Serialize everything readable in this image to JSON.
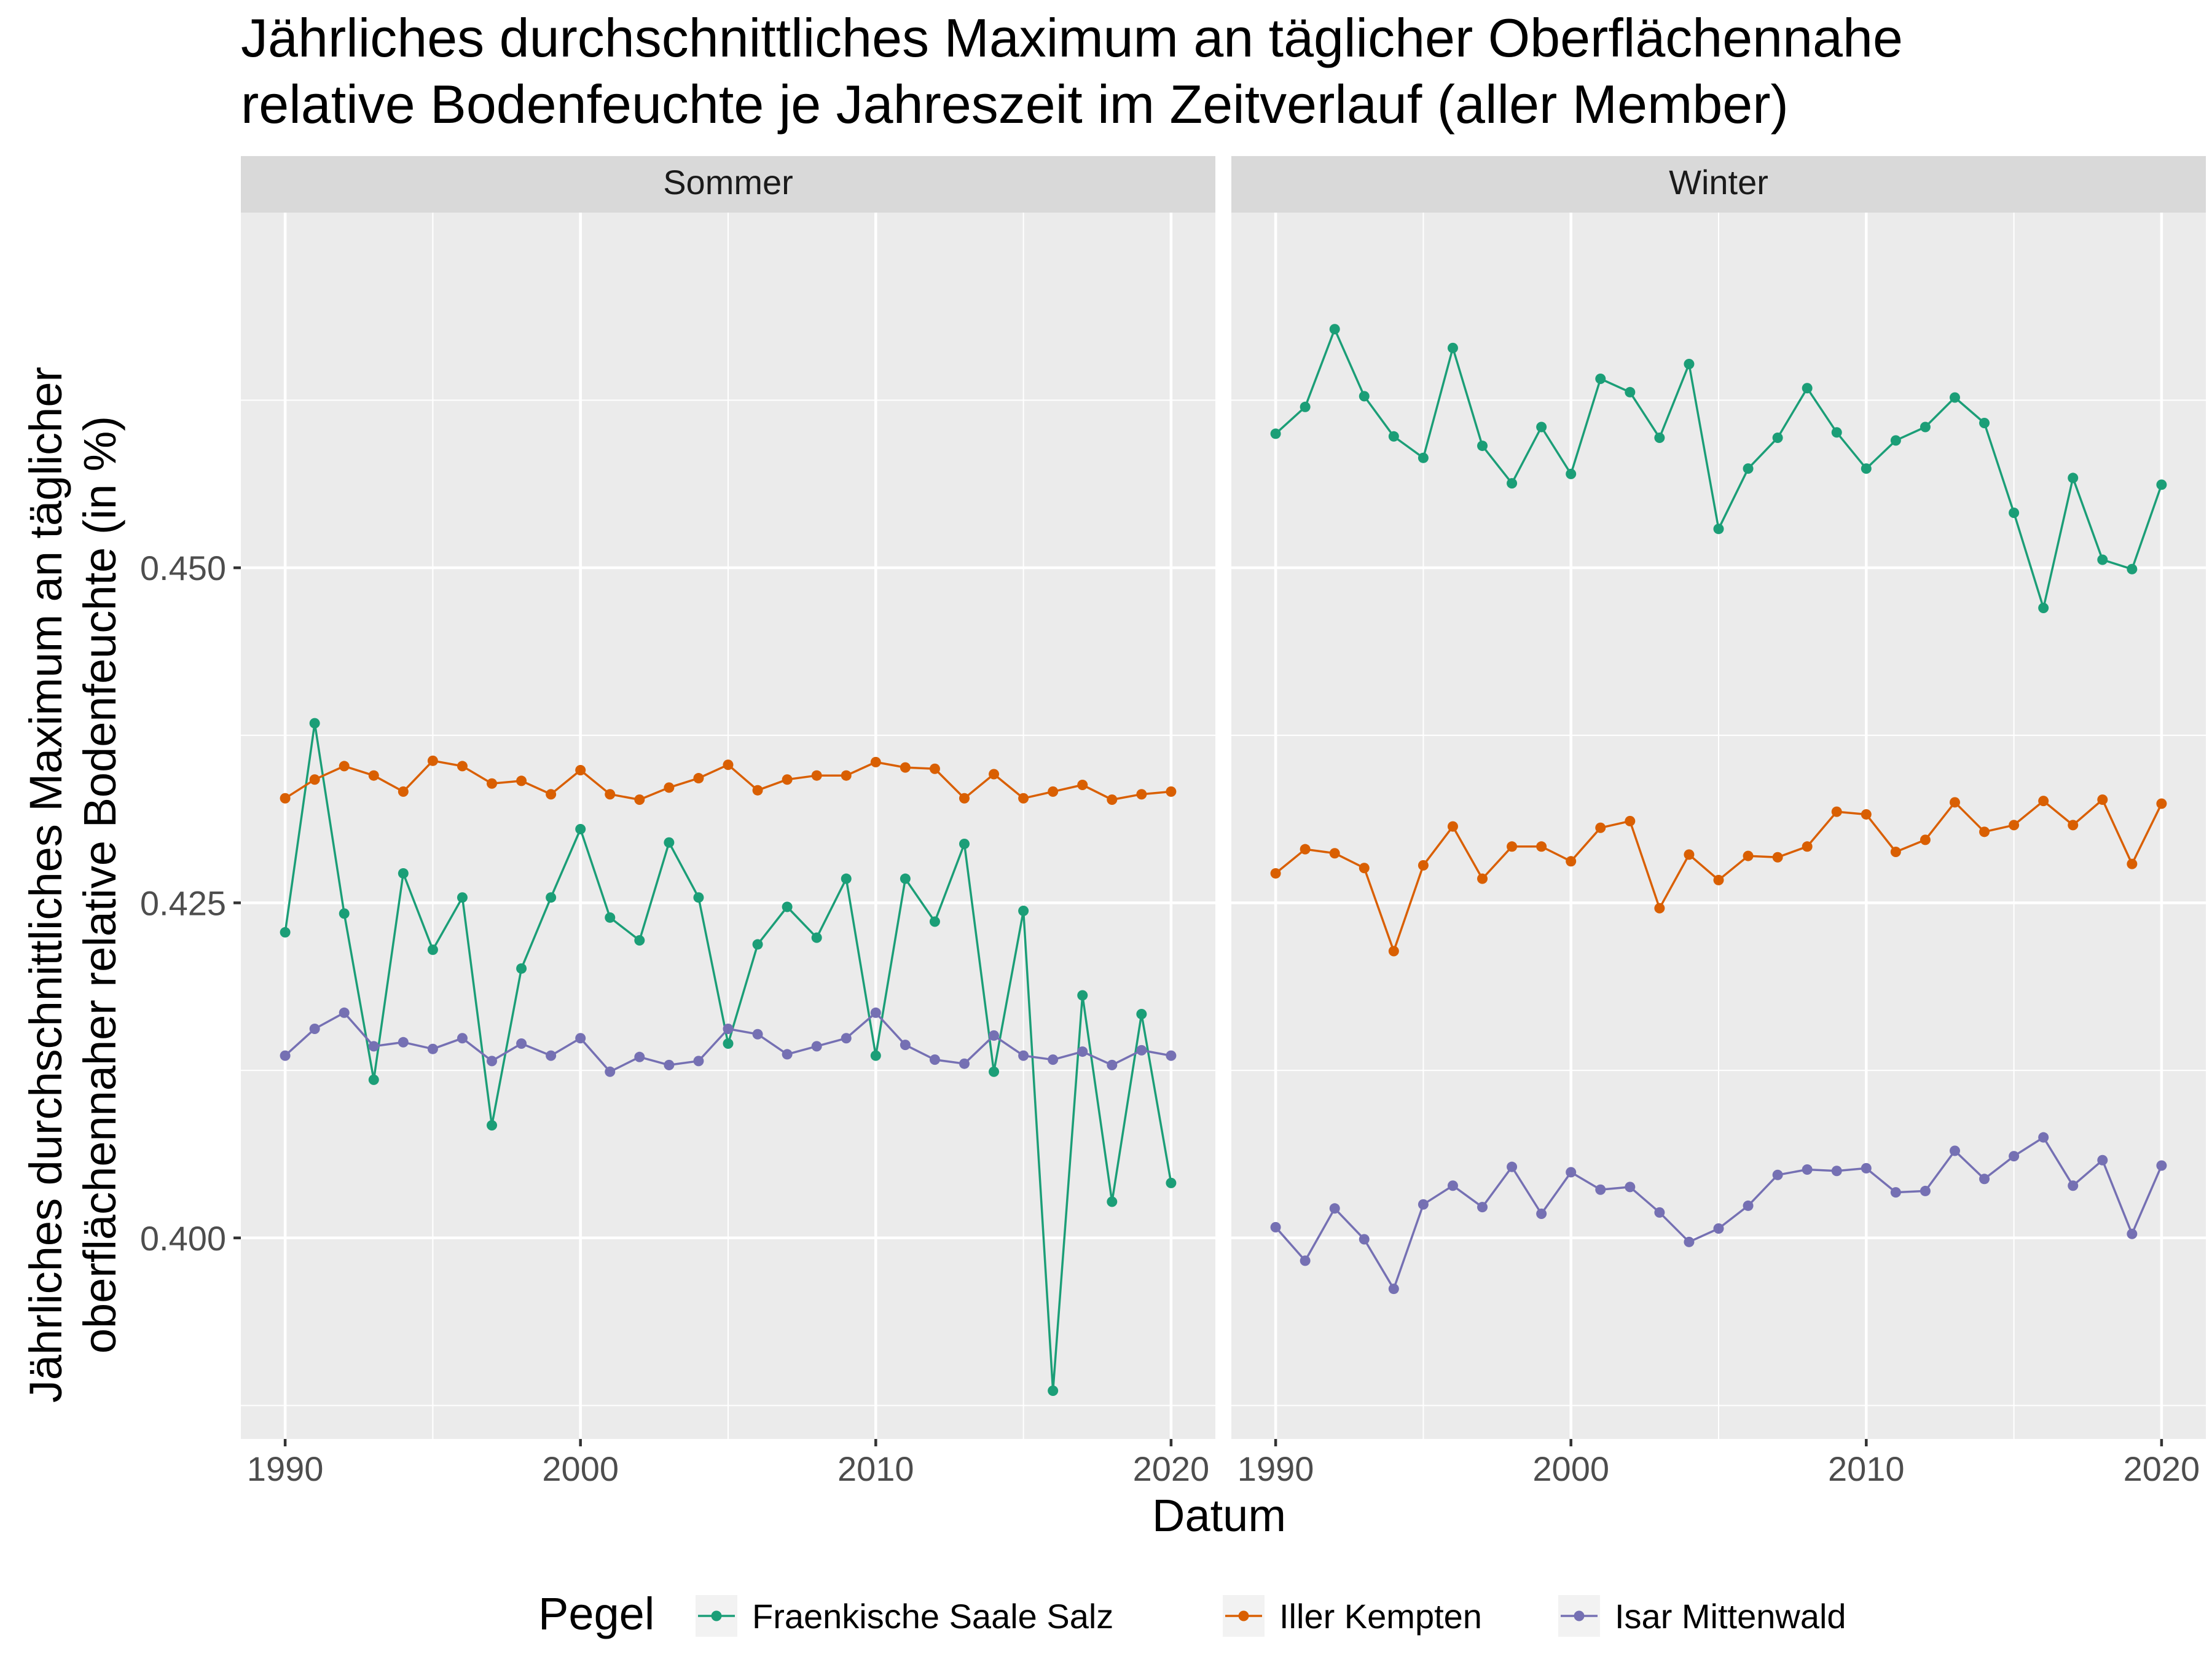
{
  "chart_data": {
    "type": "line",
    "title_lines": [
      "Jährliches durchschnittliches Maximum an täglicher Oberflächennahe",
      "relative Bodenfeuchte je Jahreszeit im Zeitverlauf (aller Member)"
    ],
    "xlabel": "Datum",
    "ylabel_lines": [
      "Jährliches durchschnittliches Maximum an täglicher",
      "oberflächennaher relative Bodenfeuchte (in %)"
    ],
    "legend_title": "Pegel",
    "legend_position": "bottom",
    "grid": true,
    "xlim": [
      1988.5,
      2021.5
    ],
    "ylim": [
      0.385,
      0.4765
    ],
    "x_ticks": [
      1990,
      2000,
      2010,
      2020
    ],
    "x_tick_labels": [
      "1990",
      "2000",
      "2010",
      "2020"
    ],
    "y_ticks": [
      0.4,
      0.425,
      0.45
    ],
    "y_tick_labels": [
      "0.400",
      "0.425",
      "0.450"
    ],
    "x": [
      1990,
      1991,
      1992,
      1993,
      1994,
      1995,
      1996,
      1997,
      1998,
      1999,
      2000,
      2001,
      2002,
      2003,
      2004,
      2005,
      2006,
      2007,
      2008,
      2009,
      2010,
      2011,
      2012,
      2013,
      2014,
      2015,
      2016,
      2017,
      2018,
      2019,
      2020
    ],
    "colors": {
      "Fraenkische Saale Salz": "#1b9e77",
      "Iller Kempten": "#d95f02",
      "Isar Mittenwald": "#7570b3"
    },
    "panels": [
      {
        "name": "Sommer",
        "series": [
          {
            "name": "Fraenkische Saale Salz",
            "values": [
              0.4228,
              0.4384,
              0.4242,
              0.4118,
              0.4272,
              0.4215,
              0.4254,
              0.4084,
              0.4201,
              0.4254,
              0.4305,
              0.4239,
              0.4222,
              0.4295,
              0.4254,
              0.4145,
              0.4219,
              0.4247,
              0.4224,
              0.4268,
              0.4136,
              0.4268,
              0.4236,
              0.4294,
              0.4124,
              0.4244,
              0.3886,
              0.4181,
              0.4027,
              0.4167,
              0.4041
            ]
          },
          {
            "name": "Iller Kempten",
            "values": [
              0.4328,
              0.4342,
              0.4352,
              0.4345,
              0.4333,
              0.4356,
              0.4352,
              0.4339,
              0.4341,
              0.4331,
              0.4349,
              0.4331,
              0.4327,
              0.4336,
              0.4343,
              0.4353,
              0.4334,
              0.4342,
              0.4345,
              0.4345,
              0.4355,
              0.4351,
              0.435,
              0.4328,
              0.4346,
              0.4328,
              0.4333,
              0.4338,
              0.4327,
              0.4331,
              0.4333
            ]
          },
          {
            "name": "Isar Mittenwald",
            "values": [
              0.4136,
              0.4156,
              0.4168,
              0.4143,
              0.4146,
              0.4141,
              0.4149,
              0.4132,
              0.4145,
              0.4136,
              0.4149,
              0.4124,
              0.4135,
              0.4129,
              0.4132,
              0.4156,
              0.4152,
              0.4137,
              0.4143,
              0.4149,
              0.4168,
              0.4144,
              0.4133,
              0.413,
              0.4151,
              0.4136,
              0.4133,
              0.4139,
              0.4129,
              0.414,
              0.4136
            ]
          }
        ]
      },
      {
        "name": "Winter",
        "series": [
          {
            "name": "Fraenkische Saale Salz",
            "values": [
              0.46,
              0.462,
              0.4678,
              0.4628,
              0.4598,
              0.4582,
              0.4664,
              0.4591,
              0.4563,
              0.4605,
              0.457,
              0.4641,
              0.4631,
              0.4597,
              0.4652,
              0.4529,
              0.4574,
              0.4597,
              0.4634,
              0.4601,
              0.4574,
              0.4595,
              0.4605,
              0.4627,
              0.4608,
              0.4541,
              0.447,
              0.4567,
              0.4506,
              0.4499,
              0.4562
            ]
          },
          {
            "name": "Iller Kempten",
            "values": [
              0.4272,
              0.429,
              0.4287,
              0.4276,
              0.4214,
              0.4278,
              0.4307,
              0.4268,
              0.4292,
              0.4292,
              0.4281,
              0.4306,
              0.4311,
              0.4246,
              0.4286,
              0.4267,
              0.4285,
              0.4284,
              0.4292,
              0.4318,
              0.4316,
              0.4288,
              0.4297,
              0.4325,
              0.4303,
              0.4308,
              0.4326,
              0.4308,
              0.4327,
              0.4279,
              0.4324
            ]
          },
          {
            "name": "Isar Mittenwald",
            "values": [
              0.4008,
              0.3983,
              0.4022,
              0.3999,
              0.3962,
              0.4025,
              0.4039,
              0.4023,
              0.4053,
              0.4018,
              0.4049,
              0.4036,
              0.4038,
              0.4019,
              0.3997,
              0.4007,
              0.4024,
              0.4047,
              0.4051,
              0.405,
              0.4052,
              0.4034,
              0.4035,
              0.4065,
              0.4044,
              0.4061,
              0.4075,
              0.4039,
              0.4058,
              0.4003,
              0.4054
            ]
          }
        ]
      }
    ]
  }
}
